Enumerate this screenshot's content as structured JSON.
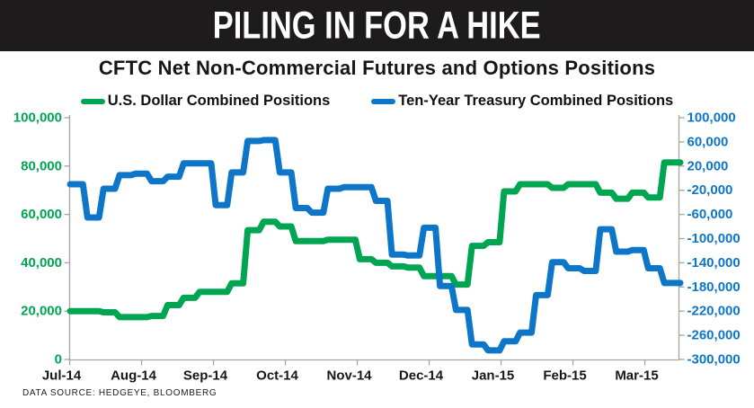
{
  "banner": {
    "title": "PILING IN FOR A HIKE",
    "bg_color": "#1d1b1b",
    "text_color": "#ffffff"
  },
  "subtitle": "CFTC Net Non-Commercial Futures and Options Positions",
  "legend": {
    "items": [
      {
        "label": "U.S. Dollar Combined Positions",
        "color": "#00a551"
      },
      {
        "label": "Ten-Year Treasury Combined Positions",
        "color": "#0e76c8"
      }
    ]
  },
  "source_note": "DATA SOURCE: HEDGEYE, BLOOMBERG",
  "colors": {
    "axis_line": "#a3a3a3",
    "month_label": "#161616",
    "usd_green": "#00a551",
    "treasury_blue": "#0e76c8"
  },
  "chart_data": {
    "type": "line",
    "title": "CFTC Net Non-Commercial Futures and Options Positions",
    "x_unit": "weekly (Jul-14 through Mar-15)",
    "x_ticks": [
      "Jul-14",
      "Aug-14",
      "Sep-14",
      "Oct-14",
      "Nov-14",
      "Dec-14",
      "Jan-15",
      "Feb-15",
      "Mar-15"
    ],
    "grid": false,
    "legend_position": "top",
    "left_axis": {
      "min": 0,
      "max": 100000,
      "step": 20000,
      "color": "#00a551",
      "tick_labels": [
        "100,000",
        "80,000",
        "60,000",
        "40,000",
        "20,000",
        "0"
      ]
    },
    "right_axis": {
      "min": -300000,
      "max": 100000,
      "step": 40000,
      "color": "#0e76c8",
      "tick_labels": [
        "100,000",
        "60,000",
        "20,000",
        "-20,000",
        "-60,000",
        "-100,000",
        "-140,000",
        "-180,000",
        "-220,000",
        "-260,000",
        "-300,000"
      ]
    },
    "series": [
      {
        "name": "U.S. Dollar Combined Positions",
        "axis": "left",
        "color": "#00a551",
        "values": [
          20000,
          20000,
          19500,
          17500,
          17500,
          18000,
          22500,
          25500,
          28000,
          28000,
          31500,
          53500,
          57000,
          55000,
          49000,
          49000,
          49500,
          49500,
          41500,
          40000,
          38500,
          38000,
          34500,
          34500,
          31000,
          47000,
          48500,
          69500,
          72500,
          72500,
          71000,
          72500,
          72500,
          69000,
          66500,
          69000,
          67000,
          81500,
          81500
        ]
      },
      {
        "name": "Ten-Year Treasury Combined Positions",
        "axis": "right",
        "color": "#0e76c8",
        "values": [
          -10000,
          -65000,
          -17500,
          5000,
          7500,
          -5000,
          2500,
          24500,
          24500,
          -44500,
          9500,
          61500,
          63000,
          9500,
          -49500,
          -57000,
          -17500,
          -15000,
          -15000,
          -37500,
          -126500,
          -128000,
          -82000,
          -178500,
          -218000,
          -275000,
          -285000,
          -270000,
          -255500,
          -193500,
          -139000,
          -149000,
          -153500,
          -84500,
          -121500,
          -119000,
          -149000,
          -173500,
          -173500
        ]
      }
    ]
  }
}
